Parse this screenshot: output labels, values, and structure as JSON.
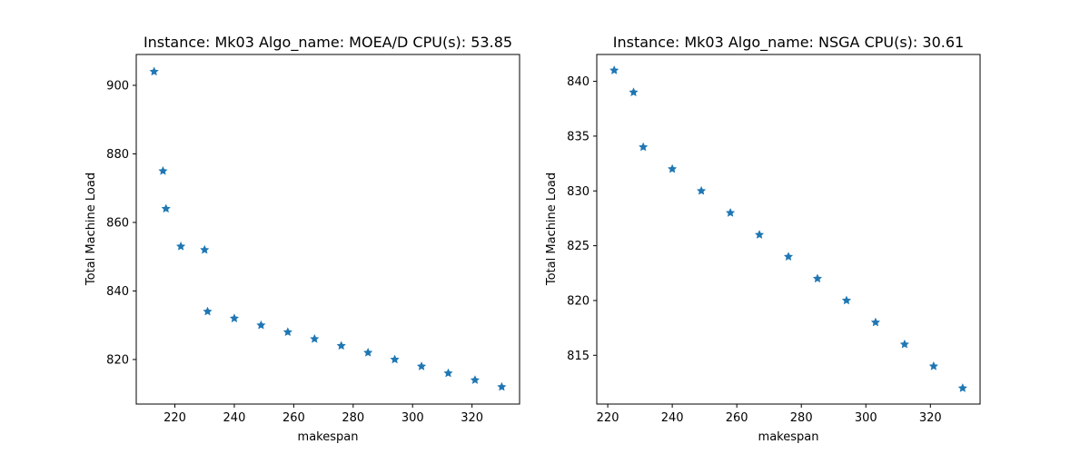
{
  "chart_data": [
    {
      "type": "scatter",
      "title": "Instance: Mk03 Algo_name: MOEA/D CPU(s): 53.85",
      "xlabel": "makespan",
      "ylabel": "Total Machine Load",
      "xlim": [
        207,
        336
      ],
      "ylim": [
        807,
        909
      ],
      "xticks": [
        220,
        240,
        260,
        280,
        300,
        320
      ],
      "yticks": [
        820,
        840,
        860,
        880,
        900
      ],
      "marker_color": "#1f77b4",
      "marker": "star",
      "points": [
        {
          "x": 213,
          "y": 904
        },
        {
          "x": 216,
          "y": 875
        },
        {
          "x": 217,
          "y": 864
        },
        {
          "x": 222,
          "y": 853
        },
        {
          "x": 230,
          "y": 852
        },
        {
          "x": 231,
          "y": 834
        },
        {
          "x": 240,
          "y": 832
        },
        {
          "x": 249,
          "y": 830
        },
        {
          "x": 258,
          "y": 828
        },
        {
          "x": 267,
          "y": 826
        },
        {
          "x": 276,
          "y": 824
        },
        {
          "x": 285,
          "y": 822
        },
        {
          "x": 294,
          "y": 820
        },
        {
          "x": 303,
          "y": 818
        },
        {
          "x": 312,
          "y": 816
        },
        {
          "x": 321,
          "y": 814
        },
        {
          "x": 330,
          "y": 812
        }
      ]
    },
    {
      "type": "scatter",
      "title": "Instance: Mk03 Algo_name: NSGA CPU(s): 30.61",
      "xlabel": "makespan",
      "ylabel": "Total Machine Load",
      "xlim": [
        216.6,
        335.4
      ],
      "ylim": [
        810.55,
        842.45
      ],
      "xticks": [
        220,
        240,
        260,
        280,
        300,
        320
      ],
      "yticks": [
        815,
        820,
        825,
        830,
        835,
        840
      ],
      "marker_color": "#1f77b4",
      "marker": "star",
      "points": [
        {
          "x": 222,
          "y": 841
        },
        {
          "x": 228,
          "y": 839
        },
        {
          "x": 231,
          "y": 834
        },
        {
          "x": 240,
          "y": 832
        },
        {
          "x": 249,
          "y": 830
        },
        {
          "x": 258,
          "y": 828
        },
        {
          "x": 267,
          "y": 826
        },
        {
          "x": 276,
          "y": 824
        },
        {
          "x": 285,
          "y": 822
        },
        {
          "x": 294,
          "y": 820
        },
        {
          "x": 303,
          "y": 818
        },
        {
          "x": 312,
          "y": 816
        },
        {
          "x": 321,
          "y": 814
        },
        {
          "x": 330,
          "y": 812
        }
      ]
    }
  ]
}
